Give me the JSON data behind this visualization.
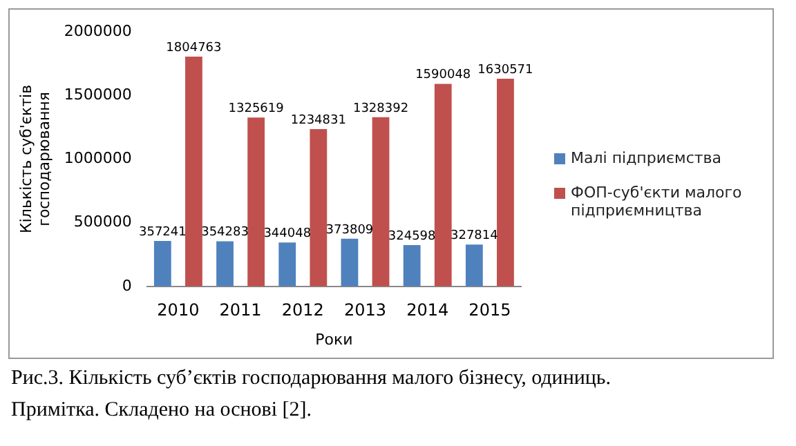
{
  "chart_data": {
    "type": "bar",
    "xlabel": "Роки",
    "ylabel": "Кількість суб'єктів господарювання",
    "categories": [
      "2010",
      "2011",
      "2012",
      "2013",
      "2014",
      "2015"
    ],
    "series": [
      {
        "name": "Малі підприємства",
        "color": "#4f81bd",
        "values": [
          357241,
          354283,
          344048,
          373809,
          324598,
          327814
        ]
      },
      {
        "name": "ФОП-суб'єкти малого підприємництва",
        "color": "#c0504d",
        "values": [
          1804763,
          1325619,
          1234831,
          1328392,
          1590048,
          1630571
        ]
      }
    ],
    "ylim": [
      0,
      2000000
    ],
    "yticks": [
      0,
      500000,
      1000000,
      1500000,
      2000000
    ],
    "data_labels": true,
    "legend": "right",
    "annotations": [
      "Рис.3. Кількість суб’єктів господарювання малого бізнесу, одиниць.",
      "Примітка. Складено на основі [2]."
    ]
  }
}
